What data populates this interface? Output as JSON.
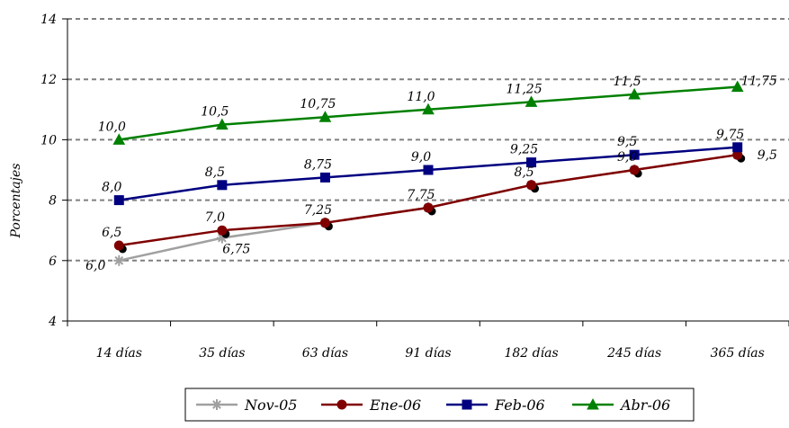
{
  "chart_data": {
    "type": "line",
    "title": "",
    "xlabel": "",
    "ylabel": "Porcentajes",
    "ylim": [
      4,
      14
    ],
    "yticks": [
      4,
      6,
      8,
      10,
      12,
      14
    ],
    "grid": true,
    "legend_position": "bottom",
    "categories": [
      "14 días",
      "35 días",
      "63 días",
      "91 días",
      "182 días",
      "245 días",
      "365 días"
    ],
    "series": [
      {
        "name": "Nov-05",
        "color": "#a0a0a0",
        "marker": "star",
        "values": [
          6.0,
          6.75,
          7.25,
          7.75,
          8.5,
          9.0,
          9.5
        ],
        "labels": [
          "6,0",
          "6,75",
          "",
          "",
          "",
          "",
          ""
        ]
      },
      {
        "name": "Ene-06",
        "color": "#800000",
        "marker": "circle",
        "values": [
          6.5,
          7.0,
          7.25,
          7.75,
          8.5,
          9.0,
          9.5
        ],
        "labels": [
          "6,5",
          "7,0",
          "7,25",
          "7,75",
          "8,5",
          "9,0",
          "9,5"
        ]
      },
      {
        "name": "Feb-06",
        "color": "#000080",
        "marker": "square",
        "values": [
          8.0,
          8.5,
          8.75,
          9.0,
          9.25,
          9.5,
          9.75
        ],
        "labels": [
          "8,0",
          "8,5",
          "8,75",
          "9,0",
          "9,25",
          "9,5",
          "9,75"
        ]
      },
      {
        "name": "Abr-06",
        "color": "#008000",
        "marker": "triangle",
        "values": [
          10.0,
          10.5,
          10.75,
          11.0,
          11.25,
          11.5,
          11.75
        ],
        "labels": [
          "10,0",
          "10,5",
          "10,75",
          "11,0",
          "11,25",
          "11,5",
          "11,75"
        ]
      }
    ]
  }
}
